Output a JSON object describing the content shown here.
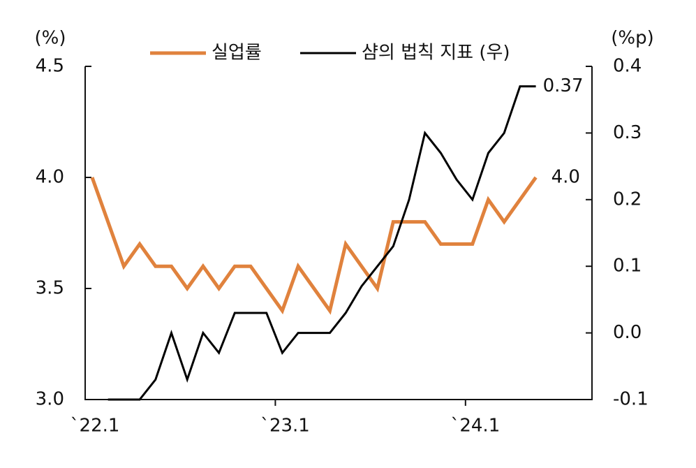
{
  "chart_data": {
    "type": "line",
    "y_label": "(%)",
    "y2_label": "(%p)",
    "categories": [
      "`22.1",
      null,
      null,
      null,
      null,
      null,
      null,
      null,
      null,
      null,
      null,
      null,
      "`23.1",
      null,
      null,
      null,
      null,
      null,
      null,
      null,
      null,
      null,
      null,
      null,
      "`24.1",
      null,
      null,
      null,
      null
    ],
    "ylim": [
      3.0,
      4.5
    ],
    "yticks": [
      {
        "value": 3.0,
        "label": "3.0"
      },
      {
        "value": 3.5,
        "label": "3.5"
      },
      {
        "value": 4.0,
        "label": "4.0"
      },
      {
        "value": 4.5,
        "label": "4.5"
      }
    ],
    "y2lim": [
      -0.1,
      0.4
    ],
    "y2ticks": [
      -0.1,
      {
        "value": 0.0,
        "label": "0.0"
      },
      0.1,
      0.2,
      0.3,
      0.4
    ],
    "legend": "top",
    "series": [
      {
        "name": "실업률",
        "color": "#e0823d",
        "axis": "y",
        "values": [
          4.0,
          3.8,
          3.6,
          3.7,
          3.6,
          3.6,
          3.5,
          3.6,
          3.5,
          3.6,
          3.6,
          3.5,
          3.4,
          3.6,
          3.5,
          3.4,
          3.7,
          3.6,
          3.5,
          3.8,
          3.8,
          3.8,
          3.7,
          3.7,
          3.7,
          3.9,
          3.8,
          3.9,
          4.0
        ],
        "value_labels": [
          null,
          null,
          null,
          null,
          null,
          null,
          null,
          null,
          null,
          null,
          null,
          null,
          null,
          null,
          null,
          null,
          null,
          null,
          null,
          null,
          null,
          null,
          null,
          null,
          null,
          null,
          null,
          null,
          "4.0"
        ]
      },
      {
        "name": "샴의 법칙 지표 (우)",
        "color": "#000000",
        "axis": "y2",
        "values": [
          null,
          -0.1,
          -0.1,
          -0.1,
          -0.07,
          0.0,
          -0.07,
          0.0,
          -0.03,
          0.03,
          0.03,
          0.03,
          -0.03,
          0.0,
          0.0,
          0.0,
          0.03,
          0.07,
          0.1,
          0.13,
          0.2,
          0.3,
          0.27,
          0.23,
          0.2,
          0.27,
          0.3,
          0.37,
          0.37
        ],
        "value_labels": [
          null,
          null,
          null,
          null,
          null,
          null,
          null,
          null,
          null,
          null,
          null,
          null,
          null,
          null,
          null,
          null,
          null,
          null,
          null,
          null,
          null,
          null,
          null,
          null,
          null,
          null,
          null,
          null,
          "0.37"
        ]
      }
    ]
  }
}
